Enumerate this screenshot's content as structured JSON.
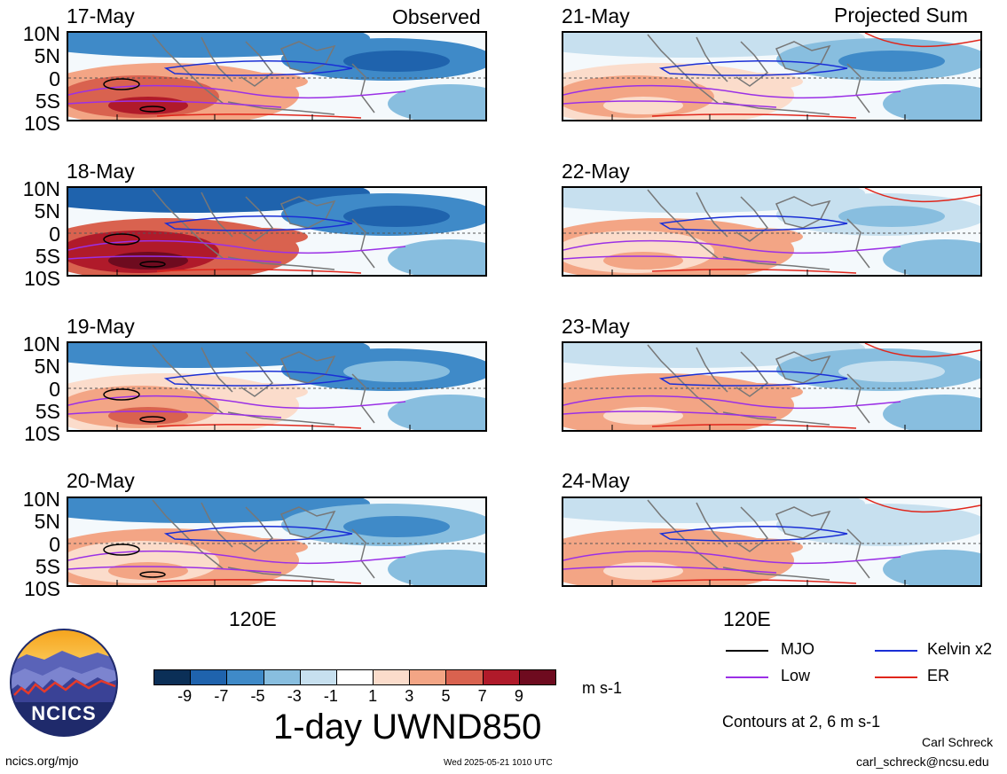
{
  "header": {
    "observed_label": "Observed",
    "projected_label": "Projected Sum"
  },
  "lat_ticks": [
    "10N",
    "5N",
    "0",
    "5S",
    "10S"
  ],
  "lon_label": "120E",
  "colorbar": {
    "ticks": [
      "-9",
      "-7",
      "-5",
      "-3",
      "-1",
      "1",
      "3",
      "5",
      "7",
      "9"
    ],
    "colors": [
      "#0b2f57",
      "#1f63ad",
      "#3f8ac8",
      "#88bedf",
      "#c7e0ef",
      "#ffffff",
      "#fbdccb",
      "#f3a585",
      "#d9624f",
      "#b01a2a",
      "#6e0b1f"
    ],
    "units": "m s-1",
    "title": "1-day UWND850"
  },
  "legend": {
    "items": [
      {
        "label": "MJO",
        "color": "#000000"
      },
      {
        "label": "Kelvin x2",
        "color": "#1a2fd6"
      },
      {
        "label": "Low",
        "color": "#9b30e6"
      },
      {
        "label": "ER",
        "color": "#e0261b"
      }
    ],
    "contours_note": "Contours at 2, 6 m s-1"
  },
  "footer": {
    "url": "ncics.org/mjo",
    "timestamp": "Wed 2025-05-21 1010 UTC",
    "author": "Carl Schreck",
    "email": "carl_schreck@ncsu.edu"
  },
  "logo": {
    "text": "NCICS"
  },
  "chart_data": {
    "type": "heatmap",
    "variable": "1-day UWND850",
    "units": "m s-1",
    "levels": [
      -9,
      -7,
      -5,
      -3,
      -1,
      1,
      3,
      5,
      7,
      9
    ],
    "contour_levels": [
      2,
      6
    ],
    "y_ticks": [
      "10N",
      "5N",
      "0",
      "5S",
      "10S"
    ],
    "x_tick": "120E",
    "panels": [
      {
        "date": "17-May",
        "column": "Observed"
      },
      {
        "date": "18-May",
        "column": "Observed"
      },
      {
        "date": "19-May",
        "column": "Observed"
      },
      {
        "date": "20-May",
        "column": "Observed"
      },
      {
        "date": "21-May",
        "column": "Projected Sum"
      },
      {
        "date": "22-May",
        "column": "Projected Sum"
      },
      {
        "date": "23-May",
        "column": "Projected Sum"
      },
      {
        "date": "24-May",
        "column": "Projected Sum"
      }
    ],
    "series": [
      {
        "name": "MJO",
        "color": "#000000"
      },
      {
        "name": "Kelvin x2",
        "color": "#1a2fd6"
      },
      {
        "name": "Low",
        "color": "#9b30e6"
      },
      {
        "name": "ER",
        "color": "#e0261b"
      }
    ]
  }
}
